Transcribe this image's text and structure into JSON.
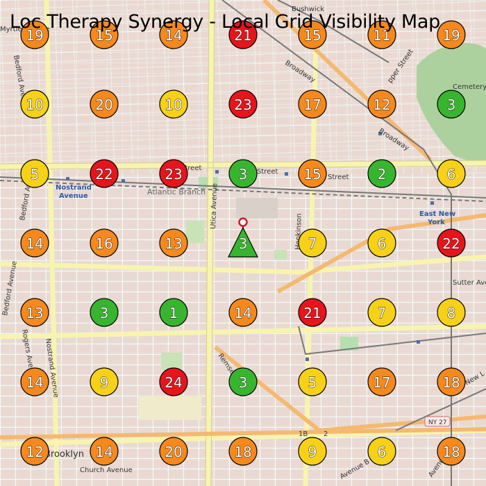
{
  "title": "Loc Therapy Synergy - Local Grid Visibility Map",
  "colors": {
    "red": "#e8141b",
    "orange": "#f5891d",
    "yellow": "#f7d117",
    "green": "#38b52f"
  },
  "map_labels": {
    "bushwick": "Bushwick",
    "broadway_1": "Broadway",
    "broadway_2": "Broadway",
    "atlantic_branch": "Atlantic Branch",
    "street_1": "Street",
    "street_2": "Street",
    "street_3": "Street",
    "nostrand_1": "Nostrand",
    "nostrand_2": "Avenue",
    "east_new_1": "East New",
    "east_new_2": "York",
    "bedford_ave_1": "Bedford Avenue",
    "bedford_ave_2": "Bedford Avenue",
    "bedford_ave_3": "Bedford Avenue",
    "rogers_ave": "Rogers Avenue",
    "nostrand_ave": "Nostrand Avenue",
    "utica_ave": "Utica Avenue",
    "remsen": "Remsen",
    "church_ave": "Church Avenue",
    "brooklyn": "Brooklyn",
    "cemetery": "Cemetery",
    "sutter_ave": "Sutter Avenue",
    "ny27": "NY 27",
    "hopkinson": "Hopkinson",
    "myrtle": "Myrtle Avenue",
    "pper_street": "pper Street",
    "new_l": "New L",
    "avenue_b": "Avenue B",
    "avenue_c": "Avenue",
    "label_1b": "1B",
    "label_2": "2"
  },
  "grid": {
    "rows": [
      [
        {
          "v": "19",
          "c": "orange"
        },
        {
          "v": "15",
          "c": "orange"
        },
        {
          "v": "14",
          "c": "orange"
        },
        {
          "v": "21",
          "c": "red"
        },
        {
          "v": "15",
          "c": "orange"
        },
        {
          "v": "11",
          "c": "orange"
        },
        {
          "v": "19",
          "c": "orange"
        }
      ],
      [
        {
          "v": "10",
          "c": "yellow"
        },
        {
          "v": "20",
          "c": "orange"
        },
        {
          "v": "10",
          "c": "yellow"
        },
        {
          "v": "23",
          "c": "red"
        },
        {
          "v": "17",
          "c": "orange"
        },
        {
          "v": "12",
          "c": "orange"
        },
        {
          "v": "3",
          "c": "green"
        }
      ],
      [
        {
          "v": "5",
          "c": "yellow"
        },
        {
          "v": "22",
          "c": "red"
        },
        {
          "v": "23",
          "c": "red"
        },
        {
          "v": "3",
          "c": "green"
        },
        {
          "v": "15",
          "c": "orange"
        },
        {
          "v": "2",
          "c": "green"
        },
        {
          "v": "6",
          "c": "yellow"
        }
      ],
      [
        {
          "v": "14",
          "c": "orange"
        },
        {
          "v": "16",
          "c": "orange"
        },
        {
          "v": "13",
          "c": "orange"
        },
        {
          "v": "3",
          "c": "green",
          "center": true
        },
        {
          "v": "7",
          "c": "yellow"
        },
        {
          "v": "6",
          "c": "yellow"
        },
        {
          "v": "22",
          "c": "red"
        }
      ],
      [
        {
          "v": "13",
          "c": "orange"
        },
        {
          "v": "3",
          "c": "green"
        },
        {
          "v": "1",
          "c": "green"
        },
        {
          "v": "14",
          "c": "orange"
        },
        {
          "v": "21",
          "c": "red"
        },
        {
          "v": "7",
          "c": "yellow"
        },
        {
          "v": "8",
          "c": "yellow"
        }
      ],
      [
        {
          "v": "14",
          "c": "orange"
        },
        {
          "v": "9",
          "c": "yellow"
        },
        {
          "v": "24",
          "c": "red"
        },
        {
          "v": "3",
          "c": "green"
        },
        {
          "v": "5",
          "c": "yellow"
        },
        {
          "v": "17",
          "c": "orange"
        },
        {
          "v": "18",
          "c": "orange"
        }
      ],
      [
        {
          "v": "12",
          "c": "orange"
        },
        {
          "v": "14",
          "c": "orange"
        },
        {
          "v": "20",
          "c": "orange"
        },
        {
          "v": "18",
          "c": "orange"
        },
        {
          "v": "9",
          "c": "yellow"
        },
        {
          "v": "6",
          "c": "yellow"
        },
        {
          "v": "18",
          "c": "orange"
        }
      ]
    ]
  }
}
